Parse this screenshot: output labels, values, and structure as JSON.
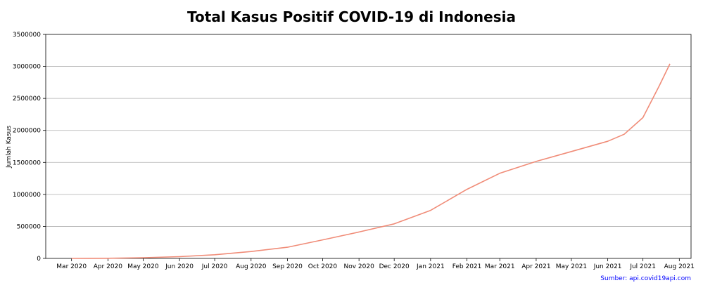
{
  "chart_data": {
    "type": "line",
    "title": "Total Kasus Positif COVID-19 di Indonesia",
    "xlabel": "",
    "ylabel": "Jumlah Kasus",
    "source": "Sumber: api.covid19api.com",
    "ylim": [
      0,
      3500000
    ],
    "xlim": [
      "2020-02-08",
      "2021-08-11"
    ],
    "y_ticks": [
      0,
      500000,
      1000000,
      1500000,
      2000000,
      2500000,
      3000000,
      3500000
    ],
    "y_tick_labels": [
      "0",
      "500000",
      "1000000",
      "1500000",
      "2000000",
      "2500000",
      "3000000",
      "3500000"
    ],
    "x_ticks": [
      "2020-03-01",
      "2020-04-01",
      "2020-05-01",
      "2020-06-01",
      "2020-07-01",
      "2020-08-01",
      "2020-09-01",
      "2020-10-01",
      "2020-11-01",
      "2020-12-01",
      "2021-01-01",
      "2021-02-01",
      "2021-03-01",
      "2021-04-01",
      "2021-05-01",
      "2021-06-01",
      "2021-07-01",
      "2021-08-01"
    ],
    "x_tick_labels": [
      "Mar 2020",
      "Apr 2020",
      "May 2020",
      "Jun 2020",
      "Jul 2020",
      "Aug 2020",
      "Sep 2020",
      "Oct 2020",
      "Nov 2020",
      "Dec 2020",
      "Jan 2021",
      "Feb 2021",
      "Mar 2021",
      "Apr 2021",
      "May 2021",
      "Jun 2021",
      "Jul 2021",
      "Aug 2021"
    ],
    "grid": "horizontal",
    "color": "#f08c78",
    "series": [
      {
        "x": [
          "2020-03-01",
          "2020-04-01",
          "2020-05-01",
          "2020-06-01",
          "2020-07-01",
          "2020-08-01",
          "2020-09-01",
          "2020-10-01",
          "2020-11-01",
          "2020-12-01",
          "2021-01-01",
          "2021-02-01",
          "2021-03-01",
          "2021-04-01",
          "2021-05-01",
          "2021-06-01",
          "2021-06-15",
          "2021-07-01",
          "2021-07-15",
          "2021-07-24"
        ],
        "y": [
          0,
          1700,
          10500,
          27000,
          57000,
          108000,
          175000,
          290000,
          412000,
          540000,
          750000,
          1080000,
          1330000,
          1515000,
          1670000,
          1830000,
          1940000,
          2200000,
          2700000,
          3040000
        ]
      }
    ]
  }
}
